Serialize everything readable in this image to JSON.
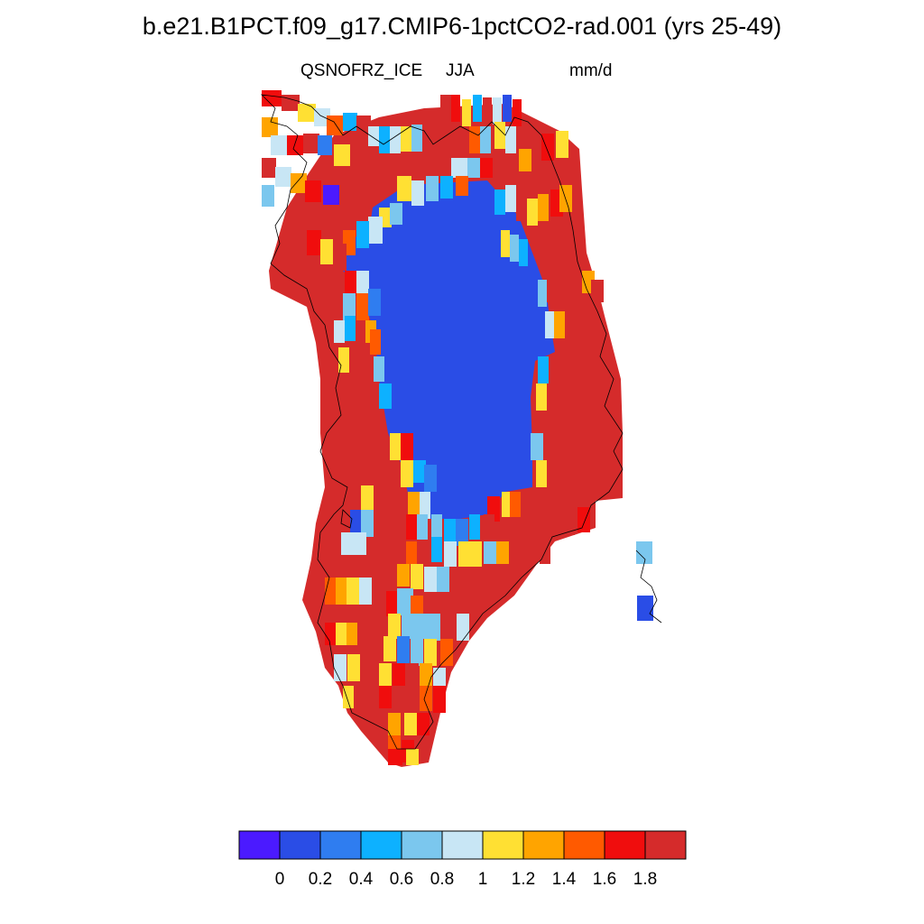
{
  "title": "b.e21.B1PCT.f09_g17.CMIP6-1pctCO2-rad.001 (yrs 25-49)",
  "variable": "QSNOFRZ_ICE",
  "season": "JJA",
  "units": "mm/d",
  "colorbar": {
    "colors": [
      "#4b1aff",
      "#2a4de6",
      "#2f7df0",
      "#0db1ff",
      "#7bc7ee",
      "#c8e6f5",
      "#ffe033",
      "#ffa400",
      "#ff5a00",
      "#f00d0d",
      "#d52b2b"
    ],
    "tick_labels": [
      "0",
      "0.2",
      "0.4",
      "0.6",
      "0.8",
      "1",
      "1.2",
      "1.4",
      "1.6",
      "1.8"
    ]
  }
}
